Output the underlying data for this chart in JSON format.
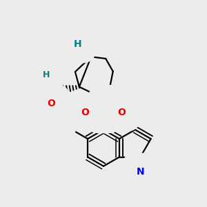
{
  "bg_color": "#ececec",
  "bond_color": "#000000",
  "N_color": "#0000ee",
  "O_color": "#ee0000",
  "S_color": "#cccc00",
  "H_color": "#008080",
  "lw": 1.6,
  "fs": 10,
  "figsize": [
    3.0,
    3.0
  ],
  "dpi": 100,
  "xlim": [
    0.05,
    0.95
  ],
  "ylim": [
    0.05,
    0.95
  ]
}
